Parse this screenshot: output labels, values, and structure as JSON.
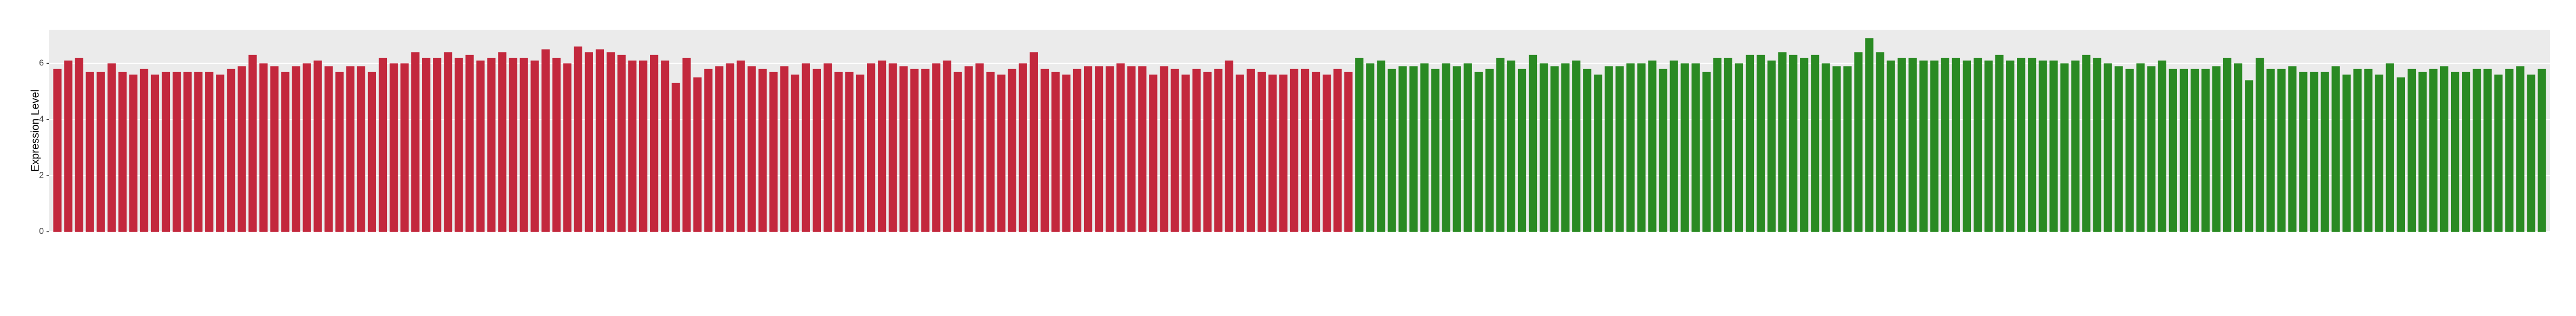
{
  "chart_data": {
    "type": "bar",
    "ylabel": "Expression Level",
    "ylim": [
      0,
      7.2
    ],
    "yticks": [
      0,
      2,
      4,
      6
    ],
    "grid": true,
    "series": [
      {
        "color": "#c3283d",
        "values": [
          5.8,
          6.1,
          6.2,
          5.7,
          5.7,
          6.0,
          5.7,
          5.6,
          5.8,
          5.6,
          5.7,
          5.7,
          5.7,
          5.7,
          5.7,
          5.6,
          5.8,
          5.9,
          6.3,
          6.0,
          5.9,
          5.7,
          5.9,
          6.0,
          6.1,
          5.9,
          5.7,
          5.9,
          5.9,
          5.7,
          6.2,
          6.0,
          6.0,
          6.4,
          6.2,
          6.2,
          6.4,
          6.2,
          6.3,
          6.1,
          6.2,
          6.4,
          6.2,
          6.2,
          6.1,
          6.5,
          6.2,
          6.0,
          6.6,
          6.4,
          6.5,
          6.4,
          6.3,
          6.1,
          6.1,
          6.3,
          6.1,
          5.3,
          6.2,
          5.5,
          5.8,
          5.9,
          6.0,
          6.1,
          5.9,
          5.8,
          5.7,
          5.9,
          5.6,
          6.0,
          5.8,
          6.0,
          5.7,
          5.7,
          5.6,
          6.0,
          6.1,
          6.0,
          5.9,
          5.8,
          5.8,
          6.0,
          6.1,
          5.7,
          5.9,
          6.0,
          5.7,
          5.6,
          5.8,
          6.0,
          6.4,
          5.8,
          5.7,
          5.6,
          5.8,
          5.9,
          5.9,
          5.9,
          6.0,
          5.9,
          5.9,
          5.6,
          5.9,
          5.8,
          5.6,
          5.8,
          5.7,
          5.8,
          6.1,
          5.6,
          5.8,
          5.7,
          5.6,
          5.6,
          5.8,
          5.8,
          5.7,
          5.6,
          5.8,
          5.7
        ]
      },
      {
        "color": "#2a8a23",
        "values": [
          6.2,
          6.0,
          6.1,
          5.8,
          5.9,
          5.9,
          6.0,
          5.8,
          6.0,
          5.9,
          6.0,
          5.7,
          5.8,
          6.2,
          6.1,
          5.8,
          6.3,
          6.0,
          5.9,
          6.0,
          6.1,
          5.8,
          5.6,
          5.9,
          5.9,
          6.0,
          6.0,
          6.1,
          5.8,
          6.1,
          6.0,
          6.0,
          5.7,
          6.2,
          6.2,
          6.0,
          6.3,
          6.3,
          6.1,
          6.4,
          6.3,
          6.2,
          6.3,
          6.0,
          5.9,
          5.9,
          6.4,
          6.9,
          6.4,
          6.1,
          6.2,
          6.2,
          6.1,
          6.1,
          6.2,
          6.2,
          6.1,
          6.2,
          6.1,
          6.3,
          6.1,
          6.2,
          6.2,
          6.1,
          6.1,
          6.0,
          6.1,
          6.3,
          6.2,
          6.0,
          5.9,
          5.8,
          6.0,
          5.9,
          6.1,
          5.8,
          5.8,
          5.8,
          5.8,
          5.9,
          6.2,
          6.0,
          5.4,
          6.2,
          5.8,
          5.8,
          5.9,
          5.7,
          5.7,
          5.7,
          5.9,
          5.6,
          5.8,
          5.8,
          5.6,
          6.0,
          5.5,
          5.8,
          5.7,
          5.8,
          5.9,
          5.7,
          5.7,
          5.8,
          5.8,
          5.6,
          5.8,
          5.9,
          5.6,
          5.8
        ]
      }
    ]
  }
}
